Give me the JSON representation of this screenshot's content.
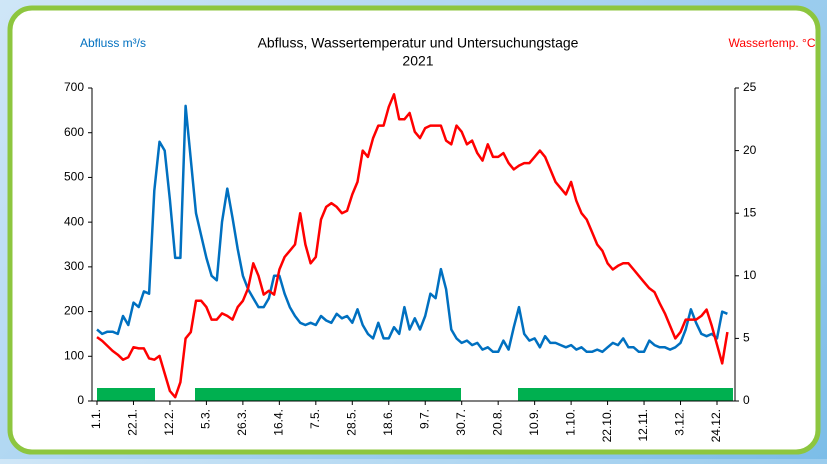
{
  "chart_data": {
    "type": "line",
    "title": "Abfluss, Wassertemperatur und Untersuchungstage",
    "subtitle": "2021",
    "categories": [
      "1.1.",
      null,
      null,
      null,
      null,
      null,
      null,
      "22.1.",
      null,
      null,
      null,
      null,
      null,
      null,
      "12.2.",
      null,
      null,
      null,
      null,
      null,
      null,
      "5.3.",
      null,
      null,
      null,
      null,
      null,
      null,
      "26.3.",
      null,
      null,
      null,
      null,
      null,
      null,
      "16.4.",
      null,
      null,
      null,
      null,
      null,
      null,
      "7.5.",
      null,
      null,
      null,
      null,
      null,
      null,
      "28.5.",
      null,
      null,
      null,
      null,
      null,
      null,
      "18.6.",
      null,
      null,
      null,
      null,
      null,
      null,
      "9.7.",
      null,
      null,
      null,
      null,
      null,
      null,
      "30.7.",
      null,
      null,
      null,
      null,
      null,
      null,
      "20.8.",
      null,
      null,
      null,
      null,
      null,
      null,
      "10.9.",
      null,
      null,
      null,
      null,
      null,
      null,
      "1.10.",
      null,
      null,
      null,
      null,
      null,
      null,
      "22.10.",
      null,
      null,
      null,
      null,
      null,
      null,
      "12.11.",
      null,
      null,
      null,
      null,
      null,
      null,
      "3.12.",
      null,
      null,
      null,
      null,
      null,
      null,
      "24.12.",
      null,
      null
    ],
    "series": [
      {
        "name": "Abfluss m³/s",
        "color": "#0070c0",
        "axis": "y",
        "values": [
          160,
          150,
          155,
          155,
          150,
          190,
          170,
          220,
          210,
          245,
          240,
          470,
          580,
          560,
          450,
          320,
          320,
          660,
          540,
          420,
          370,
          320,
          280,
          270,
          400,
          475,
          410,
          340,
          280,
          250,
          230,
          210,
          210,
          230,
          280,
          280,
          240,
          210,
          190,
          175,
          170,
          175,
          170,
          190,
          180,
          175,
          195,
          185,
          190,
          175,
          205,
          170,
          150,
          140,
          175,
          140,
          140,
          165,
          150,
          210,
          160,
          185,
          160,
          190,
          240,
          230,
          295,
          250,
          160,
          140,
          130,
          135,
          125,
          130,
          115,
          120,
          110,
          110,
          135,
          115,
          165,
          210,
          150,
          135,
          140,
          120,
          145,
          130,
          130,
          125,
          120,
          125,
          115,
          120,
          110,
          110,
          115,
          110,
          120,
          130,
          125,
          140,
          120,
          120,
          110,
          110,
          135,
          125,
          120,
          120,
          115,
          120,
          130,
          160,
          205,
          175,
          150,
          145,
          150,
          140,
          200,
          195
        ]
      },
      {
        "name": "Wassertemp. °C",
        "color": "#ff0000",
        "axis": "y2",
        "values": [
          5.1,
          4.8,
          4.4,
          4.0,
          3.7,
          3.3,
          3.5,
          4.3,
          4.2,
          4.2,
          3.4,
          3.3,
          3.6,
          2.2,
          0.8,
          0.3,
          1.5,
          5.0,
          5.5,
          8.0,
          8.0,
          7.5,
          6.5,
          6.5,
          7.0,
          6.8,
          6.5,
          7.5,
          8.0,
          9.0,
          11.0,
          10.0,
          8.5,
          8.8,
          8.5,
          10.5,
          11.5,
          12.0,
          12.5,
          15.0,
          12.5,
          11.0,
          11.5,
          14.5,
          15.5,
          15.8,
          15.5,
          15.0,
          15.2,
          16.5,
          17.5,
          20.0,
          19.5,
          21.0,
          22.0,
          22.0,
          23.5,
          24.5,
          22.5,
          22.5,
          23.0,
          21.5,
          21.0,
          21.8,
          22.0,
          22.0,
          22.0,
          20.8,
          20.5,
          22.0,
          21.5,
          20.5,
          20.8,
          19.8,
          19.2,
          20.5,
          19.5,
          19.5,
          19.8,
          19.0,
          18.5,
          18.8,
          19.0,
          19.0,
          19.5,
          20.0,
          19.5,
          18.5,
          17.5,
          17.0,
          16.5,
          17.5,
          16.0,
          15.0,
          14.5,
          13.5,
          12.5,
          12.0,
          11.0,
          10.5,
          10.8,
          11.0,
          11.0,
          10.5,
          10.0,
          9.5,
          9.0,
          8.7,
          7.8,
          7.0,
          6.0,
          5.0,
          5.5,
          6.5,
          6.5,
          6.5,
          6.8,
          7.3,
          6.0,
          4.5,
          3.0,
          5.5
        ]
      }
    ],
    "ylim": [
      0,
      700
    ],
    "yticks": [
      0,
      100,
      200,
      300,
      400,
      500,
      600,
      700
    ],
    "y2lim": [
      0,
      25
    ],
    "y2ticks": [
      0,
      5,
      10,
      15,
      20,
      25
    ],
    "grid": false
  }
}
